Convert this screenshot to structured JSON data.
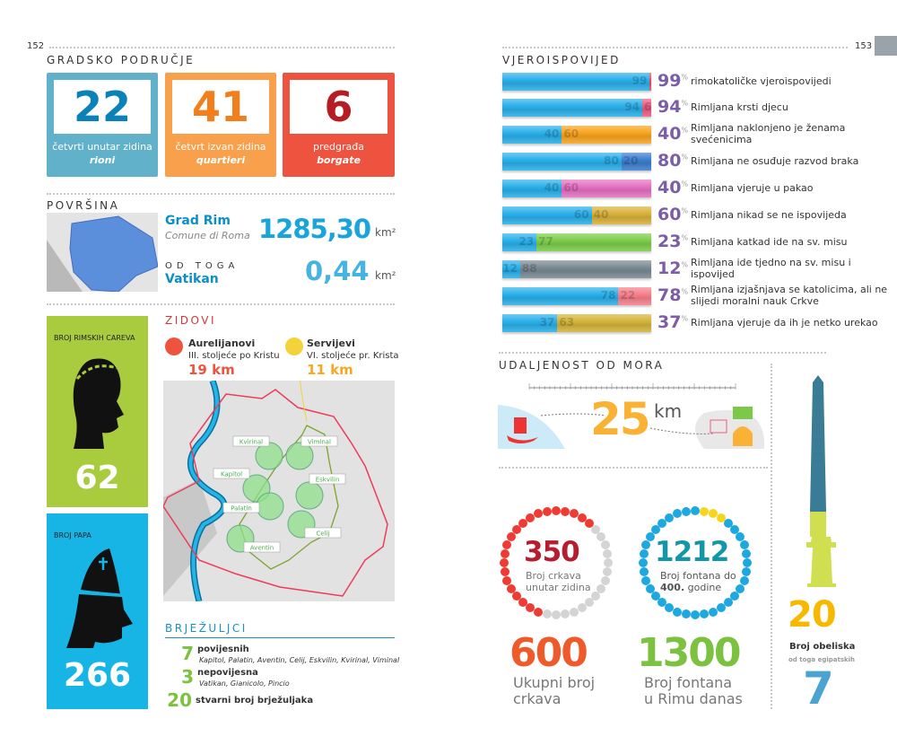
{
  "left_page": {
    "page_number": "152",
    "area": {
      "heading": "GRADSKO PODRUČJE",
      "boxes": [
        {
          "value": "22",
          "line1": "četvrti unutar zidina",
          "line2": "rioni",
          "color": "#62b1cb",
          "num_color": "#0a82b8"
        },
        {
          "value": "41",
          "line1": "četvrt izvan zidina",
          "line2": "quartieri",
          "color": "#f9a04c",
          "num_color": "#f27f1b"
        },
        {
          "value": "6",
          "line1": "predgrađa",
          "line2": "borgate",
          "color": "#ee5340",
          "num_color": "#b71c24"
        }
      ]
    },
    "surface": {
      "heading": "POVRŠINA",
      "city_name": "Grad Rim",
      "city_sub": "Comune di Roma",
      "city_value": "1285,30",
      "unit": "km²",
      "of_which": "OD TOGA",
      "vatican_name": "Vatikan",
      "vatican_value": "0,44"
    },
    "emperors": {
      "label": "BROJ RIMSKIH CAREVA",
      "value": "62",
      "color": "#a9cc3f"
    },
    "popes": {
      "label": "BROJ PAPA",
      "value": "266",
      "color": "#17b5e6"
    },
    "walls": {
      "heading": "ZIDOVI",
      "aurelian": {
        "name": "Aurelijanovi",
        "century": "III. stoljeće po Kristu",
        "length": "19 km",
        "color": "#ee5340"
      },
      "servian": {
        "name": "Servijevi",
        "century": "VI. stoljeće pr. Krista",
        "length": "11 km",
        "color": "#f4d23a"
      },
      "hills": [
        "Kvirinal",
        "Viminal",
        "Kapitol",
        "Eskvilin",
        "Palatin",
        "Celij",
        "Aventin"
      ]
    },
    "hills": {
      "heading": "BRJEŽULJCI",
      "items": [
        {
          "count": "7",
          "label": "povijesnih",
          "detail": "Kapitol, Palatin, Aventin, Celij, Eskvilin, Kvirinal, Viminal"
        },
        {
          "count": "3",
          "label": "nepovijesna",
          "detail": "Vatikan, Gianicolo, Pincio"
        },
        {
          "count": "20",
          "label": "stvarni broj brježuljaka",
          "detail": ""
        }
      ]
    }
  },
  "right_page": {
    "page_number": "153",
    "religion": {
      "heading": "VJEROISPOVIJED",
      "percent_sign": "%"
    },
    "sea": {
      "heading": "UDALJENOST OD MORA",
      "value": "25",
      "unit": "km"
    },
    "churches": {
      "inside_value": "350",
      "inside_label_1": "Broj crkava",
      "inside_label_2": "unutar zidina",
      "total_value": "600",
      "total_label_1": "Ukupni broj",
      "total_label_2": "crkava",
      "dot_color": "#ee3b33",
      "rest_color": "#d4d4d4"
    },
    "fountains": {
      "old_value": "1212",
      "old_label_1": "Broj fontana do",
      "old_label_bold": "400.",
      "old_label_2": "godine",
      "total_value": "1300",
      "total_label_1": "Broj fontana",
      "total_label_2": "u Rimu danas",
      "dot_color": "#1ea8e0",
      "rest_color": "#f7d51d"
    },
    "obelisks": {
      "value": "20",
      "label": "Broj obeliska",
      "sub": "od toga egipatskih",
      "egyptian": "7",
      "top_color": "#3a7b96",
      "base_color": "#cfdf4f"
    }
  },
  "chart_data": {
    "type": "bar",
    "stacked": true,
    "orientation": "horizontal",
    "xlim": [
      0,
      100
    ],
    "categories": [
      "rimokatoličke vjeroispovijedi",
      "Rimljana krsti djecu",
      "Rimljana naklonjeno je ženama svećenicima",
      "Rimljana ne osuđuje razvod braka",
      "Rimljana vjeruje u pakao",
      "Rimljana nikad se ne ispovijeda",
      "Rimljana katkad ide na sv. misu",
      "Rimljana ide tjedno na sv. misu i ispovijed",
      "Rimljana izjašnjava se katolicima, ali ne slijedi moralni nauk Crkve",
      "Rimljana vjeruje da ih je netko urekao"
    ],
    "series": [
      {
        "values": [
          99,
          94,
          40,
          80,
          40,
          60,
          23,
          12,
          78,
          37
        ],
        "color": "#2ab0ea"
      },
      {
        "values": [
          1,
          6,
          60,
          20,
          60,
          40,
          77,
          88,
          22,
          63
        ],
        "colors": [
          "#ee4b5a",
          "#ec5d85",
          "#f8a41f",
          "#3d7fcf",
          "#e571c2",
          "#d9b13a",
          "#7ccc4a",
          "#7b8a94",
          "#f67f8c",
          "#d4b43b"
        ]
      }
    ]
  }
}
